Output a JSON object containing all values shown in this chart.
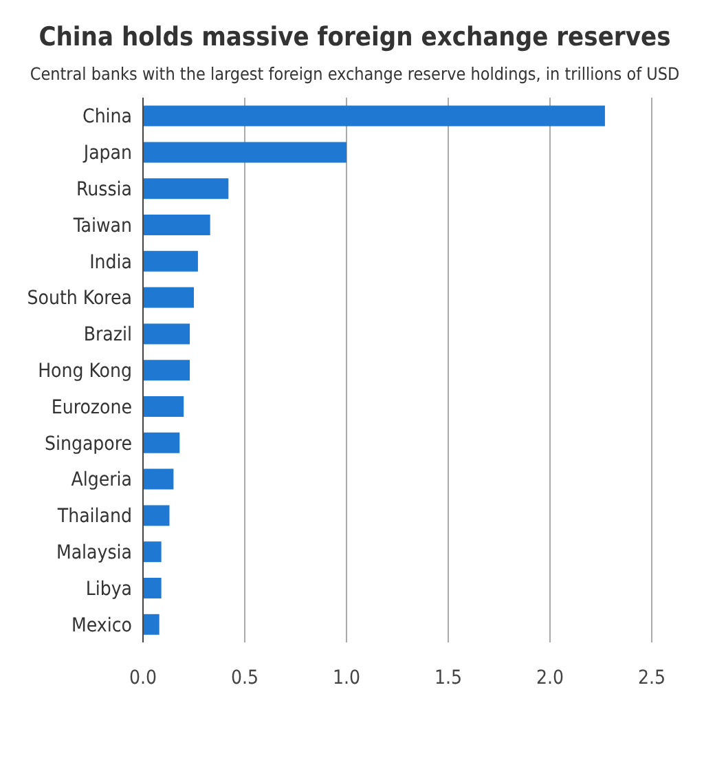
{
  "chart_data": {
    "type": "bar",
    "orientation": "horizontal",
    "title": "China holds massive foreign exchange reserves",
    "subtitle": "Central banks with the largest foreign exchange reserve holdings, in trillions of USD",
    "categories": [
      "China",
      "Japan",
      "Russia",
      "Taiwan",
      "India",
      "South Korea",
      "Brazil",
      "Hong Kong",
      "Eurozone",
      "Singapore",
      "Algeria",
      "Thailand",
      "Malaysia",
      "Libya",
      "Mexico"
    ],
    "values": [
      2.27,
      1.0,
      0.42,
      0.33,
      0.27,
      0.25,
      0.23,
      0.23,
      0.2,
      0.18,
      0.15,
      0.13,
      0.09,
      0.09,
      0.08
    ],
    "color": "#1f78d1",
    "xlim": [
      0,
      2.5
    ],
    "xticks": [
      {
        "value": 0,
        "label": "0.0"
      },
      {
        "value": 0.5,
        "label": "0.5"
      },
      {
        "value": 1,
        "label": "1.0"
      },
      {
        "value": 1.5,
        "label": "1.5"
      },
      {
        "value": 2,
        "label": "2.0"
      },
      {
        "value": 2.5,
        "label": "2.5"
      }
    ],
    "grid": "x"
  }
}
